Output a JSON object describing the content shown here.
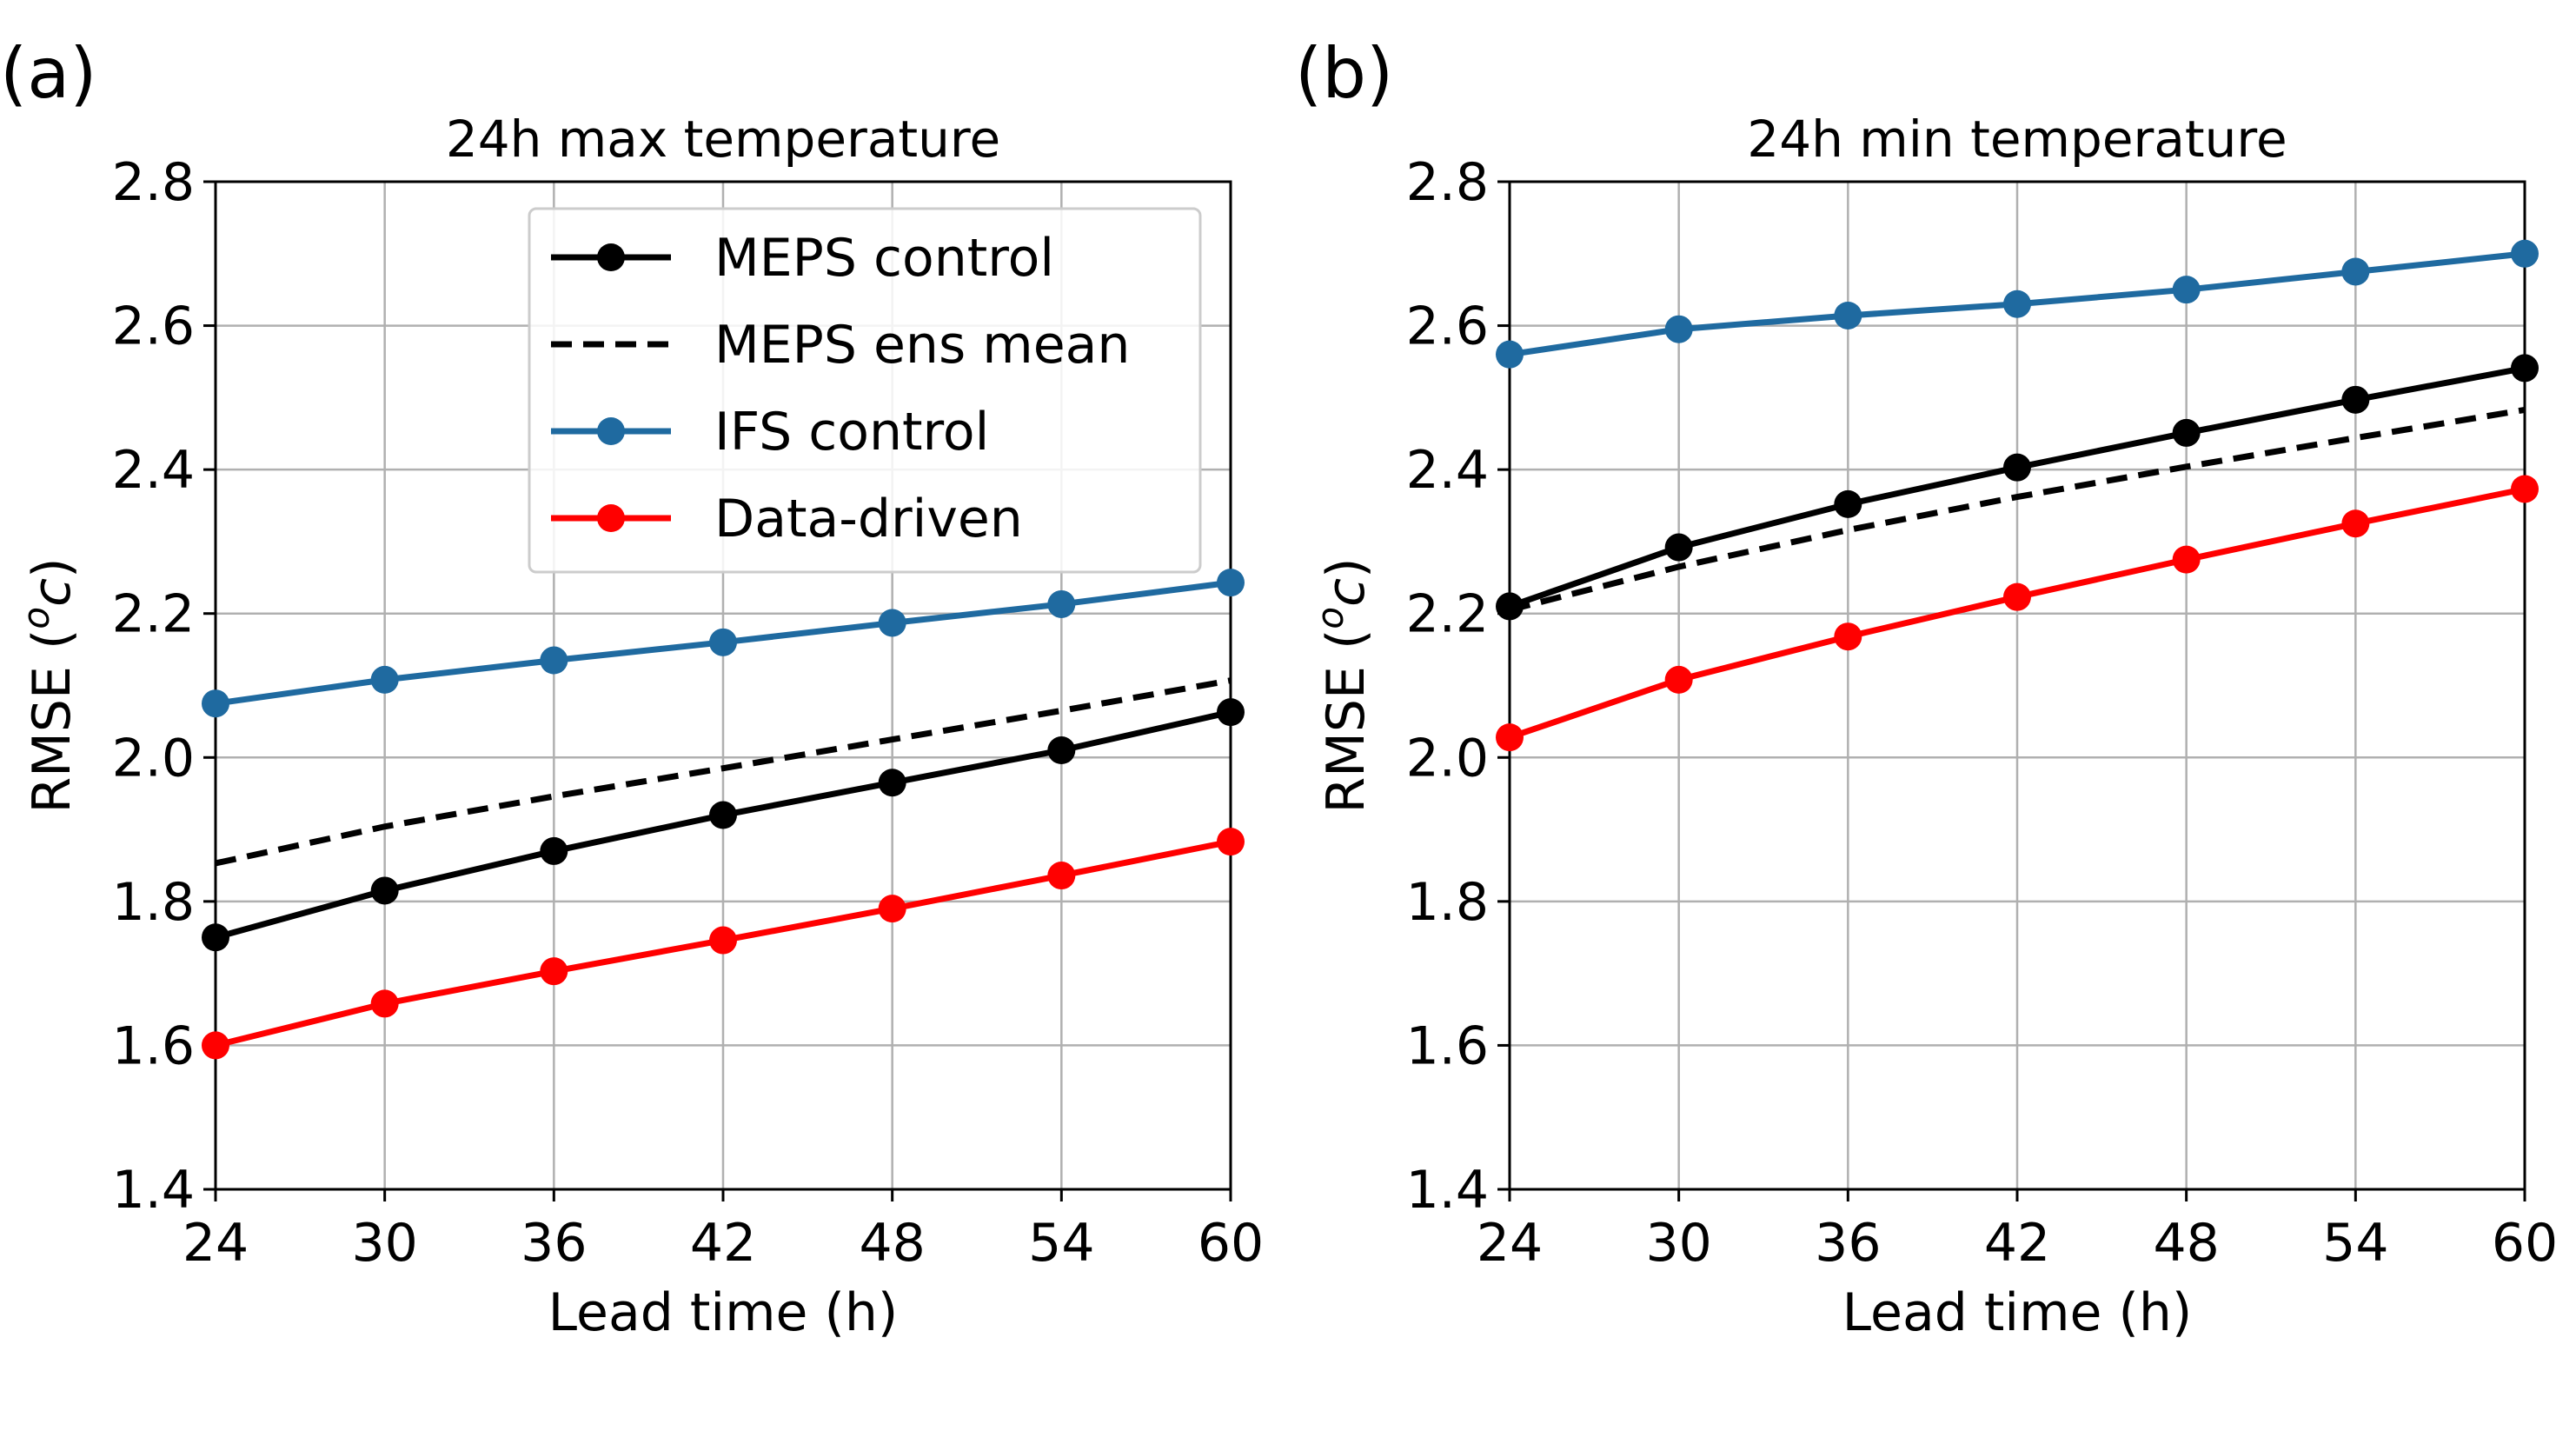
{
  "legend": [
    {
      "label": "MEPS control",
      "color": "#000000",
      "dashed": false,
      "marker": true
    },
    {
      "label": "MEPS ens mean",
      "color": "#000000",
      "dashed": true,
      "marker": false
    },
    {
      "label": "IFS control",
      "color": "#1f6aa0",
      "dashed": false,
      "marker": true
    },
    {
      "label": "Data-driven",
      "color": "#ff0000",
      "dashed": false,
      "marker": true
    }
  ],
  "chart_data": [
    {
      "panel_label": "(a)",
      "type": "line",
      "title": "24h max temperature",
      "xlabel": "Lead time (h)",
      "ylabel_text": "RMSE (",
      "ylabel_unit_sup": "o",
      "ylabel_unit_base": "c",
      "ylabel_close": ")",
      "x": [
        24,
        30,
        36,
        42,
        48,
        54,
        60
      ],
      "xlim": [
        24,
        60
      ],
      "ylim": [
        1.4,
        2.8
      ],
      "xticks": [
        "24",
        "30",
        "36",
        "42",
        "48",
        "54",
        "60"
      ],
      "yticks": [
        "1.4",
        "1.6",
        "1.8",
        "2.0",
        "2.2",
        "2.4",
        "2.6",
        "2.8"
      ],
      "grid": true,
      "legend_position": "top-right",
      "series": [
        {
          "name": "MEPS control",
          "values": [
            1.75,
            1.815,
            1.87,
            1.92,
            1.965,
            2.01,
            2.063
          ]
        },
        {
          "name": "MEPS ens mean",
          "values": [
            1.853,
            1.904,
            1.946,
            1.985,
            2.025,
            2.065,
            2.107
          ]
        },
        {
          "name": "IFS control",
          "values": [
            2.075,
            2.108,
            2.135,
            2.16,
            2.187,
            2.213,
            2.243
          ]
        },
        {
          "name": "Data-driven",
          "values": [
            1.6,
            1.658,
            1.703,
            1.746,
            1.79,
            1.836,
            1.883
          ]
        }
      ]
    },
    {
      "panel_label": "(b)",
      "type": "line",
      "title": "24h min temperature",
      "xlabel": "Lead time (h)",
      "ylabel_text": "RMSE (",
      "ylabel_unit_sup": "o",
      "ylabel_unit_base": "c",
      "ylabel_close": ")",
      "x": [
        24,
        30,
        36,
        42,
        48,
        54,
        60
      ],
      "xlim": [
        24,
        60
      ],
      "ylim": [
        1.4,
        2.8
      ],
      "xticks": [
        "24",
        "30",
        "36",
        "42",
        "48",
        "54",
        "60"
      ],
      "yticks": [
        "1.4",
        "1.6",
        "1.8",
        "2.0",
        "2.2",
        "2.4",
        "2.6",
        "2.8"
      ],
      "grid": true,
      "legend_position": "none",
      "series": [
        {
          "name": "MEPS control",
          "values": [
            2.21,
            2.292,
            2.352,
            2.403,
            2.451,
            2.497,
            2.541
          ]
        },
        {
          "name": "MEPS ens mean",
          "values": [
            2.205,
            2.265,
            2.316,
            2.362,
            2.404,
            2.444,
            2.483
          ]
        },
        {
          "name": "IFS control",
          "values": [
            2.56,
            2.595,
            2.614,
            2.63,
            2.65,
            2.675,
            2.7
          ]
        },
        {
          "name": "Data-driven",
          "values": [
            2.028,
            2.108,
            2.168,
            2.223,
            2.275,
            2.325,
            2.373
          ]
        }
      ]
    }
  ]
}
